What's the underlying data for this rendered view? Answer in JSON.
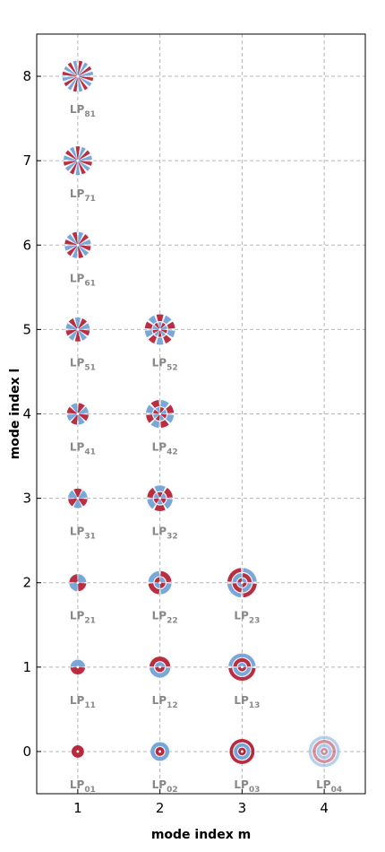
{
  "chart_data": {
    "type": "scatter",
    "title": "",
    "xlabel": "mode index m",
    "ylabel": "mode index l",
    "xlim": [
      0.5,
      4.5
    ],
    "ylim": [
      -0.5,
      8.5
    ],
    "x_ticks": [
      "1",
      "2",
      "3",
      "4"
    ],
    "y_ticks": [
      "0",
      "1",
      "2",
      "3",
      "4",
      "5",
      "6",
      "7",
      "8"
    ],
    "grid": true,
    "colors": {
      "positive": "#b2182b",
      "negative": "#6a9fd4",
      "frame": "#000000",
      "grid": "#b5b5b5",
      "label": "#888888"
    },
    "points": [
      {
        "m": 1,
        "l": 0,
        "label": "LP",
        "sub": "01"
      },
      {
        "m": 2,
        "l": 0,
        "label": "LP",
        "sub": "02"
      },
      {
        "m": 3,
        "l": 0,
        "label": "LP",
        "sub": "03"
      },
      {
        "m": 4,
        "l": 0,
        "label": "LP",
        "sub": "04"
      },
      {
        "m": 1,
        "l": 1,
        "label": "LP",
        "sub": "11"
      },
      {
        "m": 2,
        "l": 1,
        "label": "LP",
        "sub": "12"
      },
      {
        "m": 3,
        "l": 1,
        "label": "LP",
        "sub": "13"
      },
      {
        "m": 1,
        "l": 2,
        "label": "LP",
        "sub": "21"
      },
      {
        "m": 2,
        "l": 2,
        "label": "LP",
        "sub": "22"
      },
      {
        "m": 3,
        "l": 2,
        "label": "LP",
        "sub": "23"
      },
      {
        "m": 1,
        "l": 3,
        "label": "LP",
        "sub": "31"
      },
      {
        "m": 2,
        "l": 3,
        "label": "LP",
        "sub": "32"
      },
      {
        "m": 1,
        "l": 4,
        "label": "LP",
        "sub": "41"
      },
      {
        "m": 2,
        "l": 4,
        "label": "LP",
        "sub": "42"
      },
      {
        "m": 1,
        "l": 5,
        "label": "LP",
        "sub": "51"
      },
      {
        "m": 2,
        "l": 5,
        "label": "LP",
        "sub": "52"
      },
      {
        "m": 1,
        "l": 6,
        "label": "LP",
        "sub": "61"
      },
      {
        "m": 1,
        "l": 7,
        "label": "LP",
        "sub": "71"
      },
      {
        "m": 1,
        "l": 8,
        "label": "LP",
        "sub": "81"
      }
    ]
  }
}
